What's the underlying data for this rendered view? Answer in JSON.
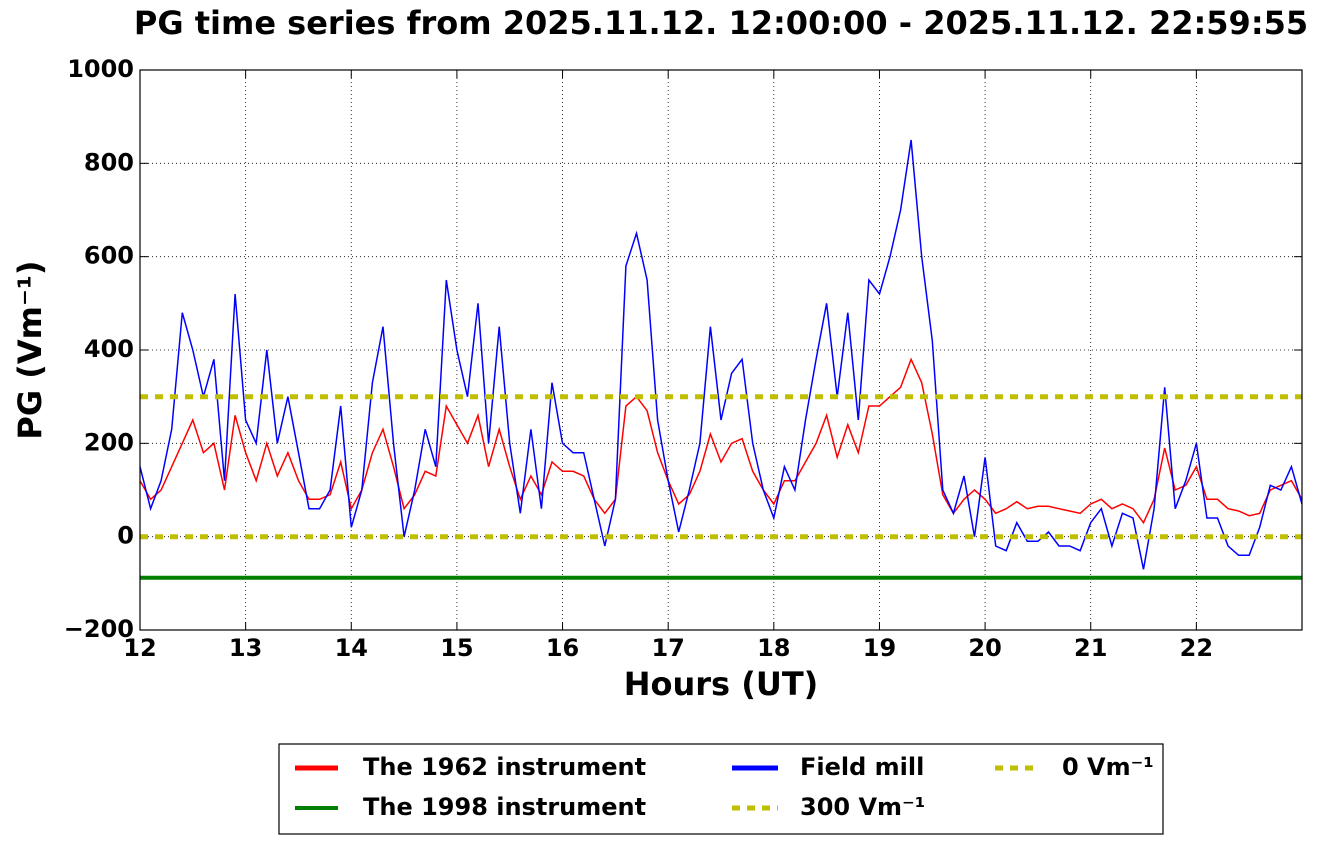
{
  "chart_data": {
    "type": "line",
    "title": "PG time series from 2025.11.12. 12:00:00 - 2025.11.12. 22:59:55",
    "x_label": "Hours (UT)",
    "y_label": "PG (Vm⁻¹)",
    "x": [
      12.0,
      12.1,
      12.2,
      12.3,
      12.4,
      12.5,
      12.6,
      12.7,
      12.8,
      12.9,
      13.0,
      13.1,
      13.2,
      13.3,
      13.4,
      13.5,
      13.6,
      13.7,
      13.8,
      13.9,
      14.0,
      14.1,
      14.2,
      14.3,
      14.4,
      14.5,
      14.6,
      14.7,
      14.8,
      14.9,
      15.0,
      15.1,
      15.2,
      15.3,
      15.4,
      15.5,
      15.6,
      15.7,
      15.8,
      15.9,
      16.0,
      16.1,
      16.2,
      16.3,
      16.4,
      16.5,
      16.6,
      16.7,
      16.8,
      16.9,
      17.0,
      17.1,
      17.2,
      17.3,
      17.4,
      17.5,
      17.6,
      17.7,
      17.8,
      17.9,
      18.0,
      18.1,
      18.2,
      18.3,
      18.4,
      18.5,
      18.6,
      18.7,
      18.8,
      18.9,
      19.0,
      19.1,
      19.2,
      19.3,
      19.4,
      19.5,
      19.6,
      19.7,
      19.8,
      19.9,
      20.0,
      20.1,
      20.2,
      20.3,
      20.4,
      20.5,
      20.6,
      20.7,
      20.8,
      20.9,
      21.0,
      21.1,
      21.2,
      21.3,
      21.4,
      21.5,
      21.6,
      21.7,
      21.8,
      21.9,
      22.0,
      22.1,
      22.2,
      22.3,
      22.4,
      22.5,
      22.6,
      22.7,
      22.8,
      22.9,
      23.0
    ],
    "series": [
      {
        "name": "The 1962 instrument",
        "color": "#ff0000",
        "linestyle": "solid",
        "linewidth": 1.5,
        "values": [
          120,
          80,
          100,
          150,
          200,
          250,
          180,
          200,
          100,
          260,
          180,
          120,
          200,
          130,
          180,
          120,
          80,
          80,
          90,
          160,
          60,
          100,
          180,
          230,
          150,
          60,
          90,
          140,
          130,
          280,
          240,
          200,
          260,
          150,
          230,
          150,
          80,
          130,
          90,
          160,
          140,
          140,
          130,
          80,
          50,
          80,
          280,
          300,
          270,
          180,
          120,
          70,
          90,
          140,
          220,
          160,
          200,
          210,
          140,
          100,
          70,
          120,
          120,
          160,
          200,
          260,
          170,
          240,
          180,
          280,
          280,
          300,
          320,
          380,
          330,
          220,
          90,
          50,
          80,
          100,
          80,
          50,
          60,
          75,
          60,
          65,
          65,
          60,
          55,
          50,
          70,
          80,
          60,
          70,
          60,
          30,
          80,
          190,
          100,
          110,
          150,
          80,
          80,
          60,
          55,
          45,
          50,
          100,
          110,
          120,
          80
        ]
      },
      {
        "name": "The 1998 instrument",
        "color": "#008000",
        "linestyle": "solid",
        "linewidth": 4,
        "x": [
          12,
          23
        ],
        "values": [
          -88,
          -88
        ]
      },
      {
        "name": "Field mill",
        "color": "#0000ff",
        "linestyle": "solid",
        "linewidth": 1.5,
        "values": [
          150,
          60,
          120,
          230,
          480,
          400,
          300,
          380,
          120,
          520,
          250,
          200,
          400,
          200,
          300,
          180,
          60,
          60,
          100,
          280,
          20,
          100,
          330,
          450,
          200,
          0,
          100,
          230,
          150,
          550,
          400,
          300,
          500,
          200,
          450,
          200,
          50,
          230,
          60,
          330,
          200,
          180,
          180,
          80,
          -20,
          80,
          580,
          650,
          550,
          250,
          120,
          10,
          100,
          200,
          450,
          250,
          350,
          380,
          200,
          100,
          40,
          150,
          100,
          250,
          380,
          500,
          300,
          480,
          250,
          550,
          520,
          600,
          700,
          850,
          600,
          420,
          100,
          50,
          130,
          0,
          170,
          -20,
          -30,
          30,
          -10,
          -10,
          10,
          -20,
          -20,
          -30,
          30,
          60,
          -20,
          50,
          40,
          -70,
          60,
          320,
          60,
          120,
          200,
          40,
          40,
          -20,
          -40,
          -40,
          20,
          110,
          100,
          150,
          70
        ]
      },
      {
        "name": "300 Vm⁻¹",
        "color": "#bfbf00",
        "linestyle": "dotted",
        "linewidth": 5,
        "x": [
          12,
          23
        ],
        "values": [
          300,
          300
        ]
      },
      {
        "name": "0 Vm⁻¹",
        "color": "#bfbf00",
        "linestyle": "dotted",
        "linewidth": 5,
        "x": [
          12,
          23
        ],
        "values": [
          0,
          0
        ]
      }
    ],
    "xlim": [
      12,
      23
    ],
    "xticks": [
      12,
      13,
      14,
      15,
      16,
      17,
      18,
      19,
      20,
      21,
      22
    ],
    "ylim": [
      -200,
      1000
    ],
    "yticks": [
      {
        "value": -200,
        "label": "−200"
      },
      0,
      200,
      400,
      600,
      800,
      1000
    ],
    "grid": true,
    "legend": "lower center"
  }
}
